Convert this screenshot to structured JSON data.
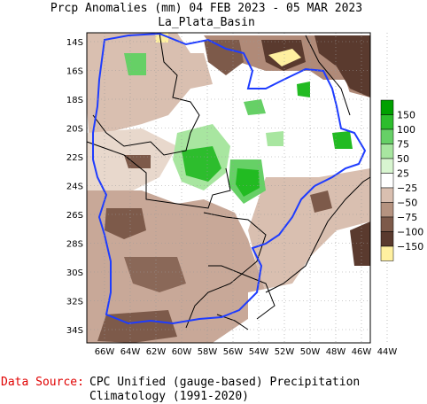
{
  "title": {
    "line1": "Prcp Anomalies (mm) 04 FEB 2023 - 05 MAR 2023",
    "line2": "La_Plata_Basin"
  },
  "lat_labels": [
    "14S",
    "16S",
    "18S",
    "20S",
    "22S",
    "24S",
    "26S",
    "28S",
    "30S",
    "32S",
    "34S"
  ],
  "lon_labels": [
    "66W",
    "64W",
    "62W",
    "60W",
    "58W",
    "56W",
    "54W",
    "52W",
    "50W",
    "48W",
    "46W",
    "44W"
  ],
  "legend": {
    "items": [
      {
        "label": "150",
        "color": "#00a000"
      },
      {
        "label": "100",
        "color": "#2dbd2d"
      },
      {
        "label": "75",
        "color": "#66d066"
      },
      {
        "label": "50",
        "color": "#a8e6a0"
      },
      {
        "label": "25",
        "color": "#d8f5d0"
      },
      {
        "label": "−25",
        "color": "#ffffff"
      },
      {
        "label": "−50",
        "color": "#d9bfb0"
      },
      {
        "label": "−75",
        "color": "#b59380"
      },
      {
        "label": "−100",
        "color": "#7d5a4a"
      },
      {
        "label": "−150",
        "color": "#5a3a2e"
      },
      {
        "label": "",
        "color": "#fff0a0"
      }
    ]
  },
  "colors": {
    "basin_outline": "#1e3cff",
    "borders": "#000000",
    "light_brown": "#d9bfb0",
    "mid_brown": "#b08a78",
    "dark_brown": "#5a3a2e",
    "green_light": "#a8e6a0",
    "green_mid": "#66d066",
    "green_dark": "#22bb22",
    "yellow": "#fff0a0"
  },
  "source": {
    "label": "Data Source:",
    "line1": "CPC Unified (gauge-based) Precipitation",
    "line2": "Climatology (1991-2020)"
  }
}
